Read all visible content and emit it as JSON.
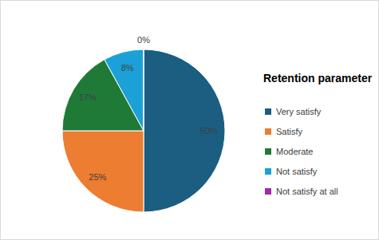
{
  "chart_data": {
    "type": "pie",
    "legend_title": "Retention parameter",
    "categories": [
      "Very satisfy",
      "Satisfy",
      "Moderate",
      "Not satisfy",
      "Not satisfy at all"
    ],
    "values": [
      50,
      25,
      17,
      8,
      0
    ],
    "value_labels": [
      "50%",
      "25%",
      "17%",
      "8%",
      "0%"
    ],
    "colors": [
      "#1b5e82",
      "#ed7d31",
      "#1f7a38",
      "#1ba1d8",
      "#a02ba8"
    ],
    "data_labels": true,
    "legend": "right"
  }
}
